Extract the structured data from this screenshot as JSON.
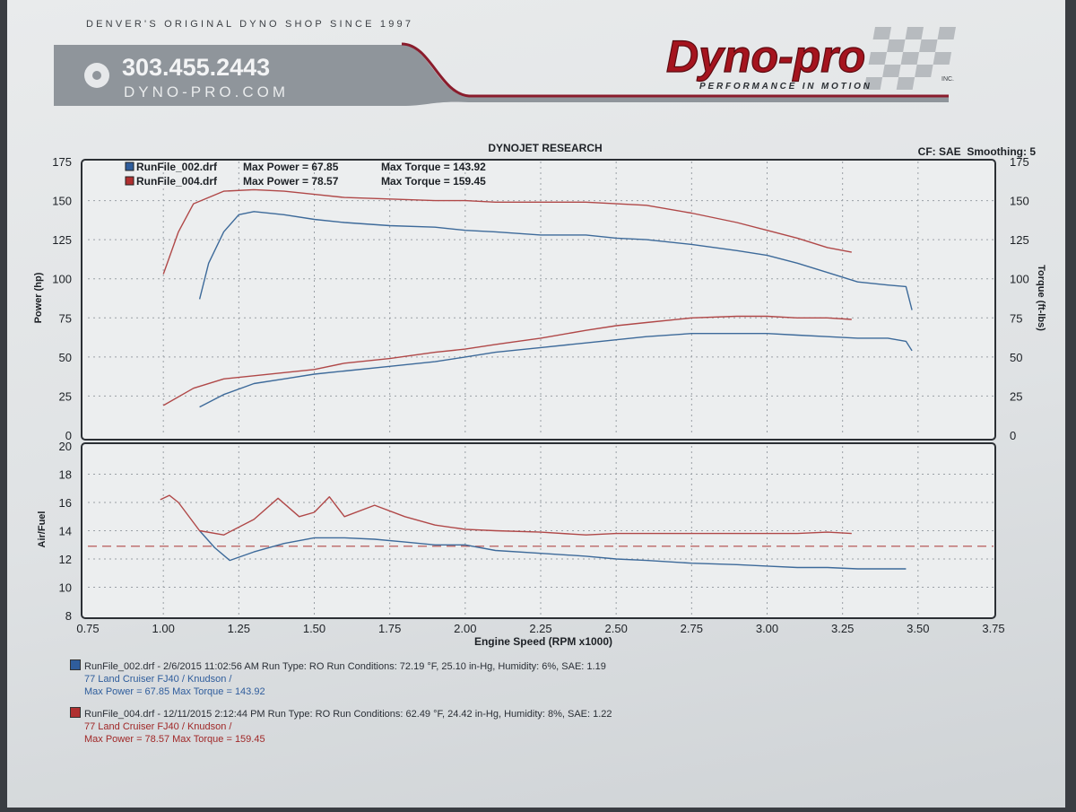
{
  "header": {
    "tagline": "DENVER'S ORIGINAL DYNO SHOP SINCE 1997",
    "phone": "303.455.2443",
    "website": "DYNO-PRO.COM",
    "logo_text": "Dyno-pro",
    "logo_suffix": "INC.",
    "logo_sub": "PERFORMANCE IN MOTION"
  },
  "chart_title": "DYNOJET RESEARCH",
  "chart_info": "CF: SAE  Smoothing: 5",
  "colors": {
    "run1": "#3d6a9a",
    "run2": "#b04848",
    "reference_line": "#b04848"
  },
  "legend": [
    {
      "file": "RunFile_002.drf",
      "power_label": "Max Power = 67.85",
      "torque_label": "Max Torque = 143.92",
      "swatch": "#2f5d9c"
    },
    {
      "file": "RunFile_004.drf",
      "power_label": "Max Power = 78.57",
      "torque_label": "Max Torque = 159.45",
      "swatch": "#b03030"
    }
  ],
  "chart_data": [
    {
      "type": "line",
      "x_unit": "RPM x1000",
      "ylabel": "Power (hp)",
      "y2label": "Torque (ft-lbs)",
      "xlim": [
        0.75,
        3.75
      ],
      "ylim": [
        0,
        175
      ],
      "y2lim": [
        0,
        175
      ],
      "yticks": [
        0,
        25,
        50,
        75,
        100,
        125,
        150,
        175
      ],
      "grid": true,
      "series": [
        {
          "name": "RunFile_002.drf",
          "measure": "Power",
          "color": "#3d6a9a",
          "x": [
            1.12,
            1.2,
            1.3,
            1.4,
            1.5,
            1.6,
            1.75,
            1.9,
            2.0,
            2.1,
            2.25,
            2.4,
            2.5,
            2.6,
            2.75,
            2.9,
            3.0,
            3.1,
            3.2,
            3.3,
            3.4,
            3.46,
            3.48
          ],
          "y": [
            18,
            26,
            33,
            36,
            39,
            41,
            44,
            47,
            50,
            53,
            56,
            59,
            61,
            63,
            65,
            65,
            65,
            64,
            63,
            62,
            62,
            60,
            54
          ]
        },
        {
          "name": "RunFile_004.drf",
          "measure": "Power",
          "color": "#b04848",
          "x": [
            1.0,
            1.1,
            1.2,
            1.3,
            1.4,
            1.5,
            1.6,
            1.75,
            1.9,
            2.0,
            2.1,
            2.25,
            2.4,
            2.5,
            2.6,
            2.75,
            2.9,
            3.0,
            3.1,
            3.2,
            3.28
          ],
          "y": [
            19,
            30,
            36,
            38,
            40,
            42,
            46,
            49,
            53,
            55,
            58,
            62,
            67,
            70,
            72,
            75,
            76,
            76,
            75,
            75,
            74
          ]
        },
        {
          "name": "RunFile_002.drf",
          "measure": "Torque",
          "color": "#3d6a9a",
          "x": [
            1.12,
            1.15,
            1.2,
            1.25,
            1.3,
            1.4,
            1.5,
            1.6,
            1.75,
            1.9,
            2.0,
            2.1,
            2.25,
            2.4,
            2.5,
            2.6,
            2.75,
            2.9,
            3.0,
            3.1,
            3.2,
            3.3,
            3.4,
            3.46,
            3.48
          ],
          "y": [
            87,
            110,
            130,
            141,
            143,
            141,
            138,
            136,
            134,
            133,
            131,
            130,
            128,
            128,
            126,
            125,
            122,
            118,
            115,
            110,
            104,
            98,
            96,
            95,
            80
          ]
        },
        {
          "name": "RunFile_004.drf",
          "measure": "Torque",
          "color": "#b04848",
          "x": [
            1.0,
            1.05,
            1.1,
            1.2,
            1.3,
            1.4,
            1.5,
            1.6,
            1.75,
            1.9,
            2.0,
            2.1,
            2.25,
            2.4,
            2.5,
            2.6,
            2.75,
            2.9,
            3.0,
            3.1,
            3.2,
            3.28
          ],
          "y": [
            103,
            130,
            148,
            156,
            157,
            156,
            154,
            152,
            151,
            150,
            150,
            149,
            149,
            149,
            148,
            147,
            142,
            136,
            131,
            126,
            120,
            117
          ]
        }
      ]
    },
    {
      "type": "line",
      "xlabel": "Engine Speed (RPM x1000)",
      "ylabel": "Air/Fuel",
      "xlim": [
        0.75,
        3.75
      ],
      "ylim": [
        8,
        20
      ],
      "xticks": [
        0.75,
        1.0,
        1.25,
        1.5,
        1.75,
        2.0,
        2.25,
        2.5,
        2.75,
        3.0,
        3.25,
        3.5,
        3.75
      ],
      "xtick_labels": [
        "0.75",
        "1.00",
        "1.25",
        "1.50",
        "1.75",
        "2.00",
        "2.25",
        "2.50",
        "2.75",
        "3.00",
        "3.25",
        "3.50",
        "3.75"
      ],
      "yticks": [
        8,
        10,
        12,
        14,
        16,
        18,
        20
      ],
      "grid": true,
      "reference_line": 12.9,
      "series": [
        {
          "name": "RunFile_002.drf",
          "color": "#3d6a9a",
          "x": [
            1.12,
            1.17,
            1.22,
            1.3,
            1.4,
            1.5,
            1.6,
            1.7,
            1.8,
            1.9,
            2.0,
            2.1,
            2.25,
            2.4,
            2.5,
            2.6,
            2.75,
            2.9,
            3.0,
            3.1,
            3.2,
            3.3,
            3.4,
            3.46
          ],
          "y": [
            14.0,
            12.8,
            11.9,
            12.5,
            13.1,
            13.5,
            13.5,
            13.4,
            13.2,
            13.0,
            13.0,
            12.6,
            12.4,
            12.2,
            12.0,
            11.9,
            11.7,
            11.6,
            11.5,
            11.4,
            11.4,
            11.3,
            11.3,
            11.3
          ]
        },
        {
          "name": "RunFile_004.drf",
          "color": "#b04848",
          "x": [
            0.99,
            1.02,
            1.05,
            1.12,
            1.2,
            1.3,
            1.38,
            1.45,
            1.5,
            1.55,
            1.6,
            1.7,
            1.8,
            1.9,
            2.0,
            2.1,
            2.25,
            2.4,
            2.5,
            2.6,
            2.75,
            2.9,
            3.0,
            3.1,
            3.2,
            3.28
          ],
          "y": [
            16.2,
            16.5,
            16.0,
            14.0,
            13.7,
            14.8,
            16.3,
            15.0,
            15.3,
            16.4,
            15.0,
            15.8,
            15.0,
            14.4,
            14.1,
            14.0,
            13.9,
            13.7,
            13.8,
            13.8,
            13.8,
            13.8,
            13.8,
            13.8,
            13.9,
            13.8
          ]
        }
      ]
    }
  ],
  "runs": [
    {
      "line1": "RunFile_002.drf - 2/6/2015 11:02:56 AM  Run Type: RO  Run Conditions: 72.19 °F, 25.10 in-Hg,  Humidity:  6%, SAE: 1.19",
      "line2": "77 Land Cruiser FJ40 / Knudson /",
      "line3": "Max Power = 67.85  Max Torque = 143.92",
      "color": "#2f5d9c"
    },
    {
      "line1": "RunFile_004.drf - 12/11/2015 2:12:44 PM  Run Type: RO  Run Conditions: 62.49 °F, 24.42 in-Hg,  Humidity:  8%, SAE: 1.22",
      "line2": "77 Land Cruiser FJ40 / Knudson /",
      "line3": "Max Power = 78.57  Max Torque = 159.45",
      "color": "#b03030"
    }
  ]
}
